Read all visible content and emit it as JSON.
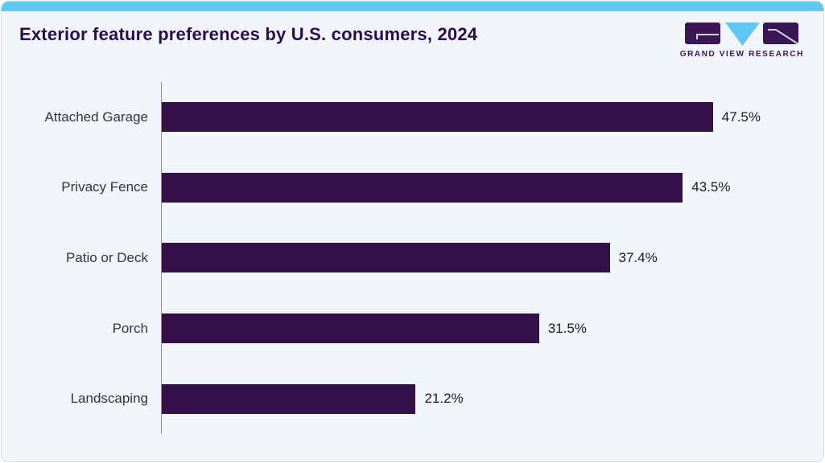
{
  "header": {
    "title": "Exterior feature preferences by U.S. consumers, 2024",
    "logo_text": "GRAND VIEW RESEARCH",
    "logo_colors": {
      "block": "#3a1653",
      "triangle": "#5ec8f2",
      "mark": "#cfd3da"
    }
  },
  "style": {
    "accent_cyan": "#5ec8f2",
    "bar_color": "#351149",
    "card_background": "#f0f6fa",
    "title_color": "#2e0a4f"
  },
  "chart_data": {
    "type": "bar",
    "orientation": "horizontal",
    "title": "Exterior feature preferences by U.S. consumers, 2024",
    "categories": [
      "Attached Garage",
      "Privacy Fence",
      "Patio or Deck",
      "Porch",
      "Landscaping"
    ],
    "values": [
      47.5,
      43.5,
      37.4,
      31.5,
      21.2
    ],
    "value_labels": [
      "47.5%",
      "43.5%",
      "37.4%",
      "31.5%",
      "21.2%"
    ],
    "xlabel": "",
    "ylabel": "",
    "xlim": [
      0,
      50
    ],
    "grid": false,
    "legend": false,
    "value_suffix": "%"
  }
}
